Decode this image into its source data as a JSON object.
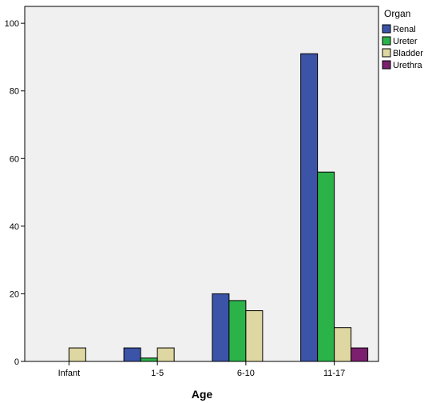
{
  "chart_data": {
    "type": "bar",
    "title": "",
    "xlabel": "Age",
    "ylabel": "",
    "categories": [
      "Infant",
      "1-5",
      "6-10",
      "11-17"
    ],
    "series": [
      {
        "name": "Renal",
        "color": "#3b54a8",
        "values": [
          0,
          4,
          20,
          91
        ]
      },
      {
        "name": "Ureter",
        "color": "#2bb34a",
        "values": [
          0,
          1,
          18,
          56
        ]
      },
      {
        "name": "Bladder",
        "color": "#ded7a1",
        "values": [
          4,
          4,
          15,
          10
        ]
      },
      {
        "name": "Urethra",
        "color": "#7b1f6e",
        "values": [
          0,
          0,
          0,
          4
        ]
      }
    ],
    "ylim": [
      0,
      105
    ],
    "yticks": [
      0,
      20,
      40,
      60,
      80,
      100
    ],
    "grid": false,
    "legend": {
      "title": "Organ",
      "placement": "right"
    },
    "plot_background": "#f0f0f0"
  }
}
